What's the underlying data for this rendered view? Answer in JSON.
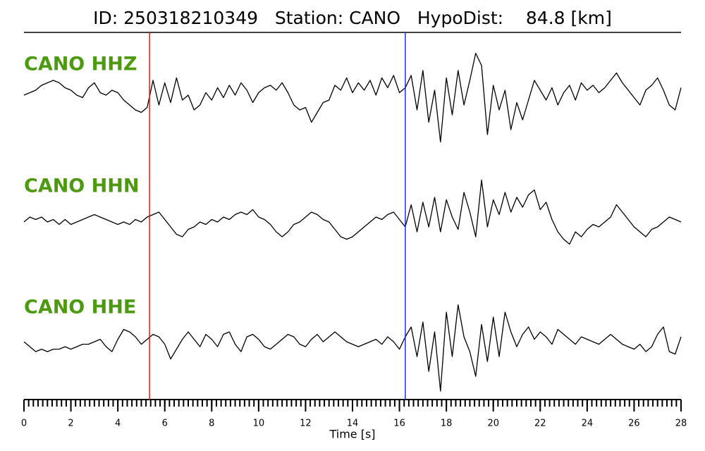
{
  "chart_data": {
    "type": "seismogram",
    "title": "ID: 250318210349   Station: CANO   HypoDist:    84.8 [km]",
    "xlabel": "Time [s]",
    "xlim": [
      0,
      28
    ],
    "xticks": [
      0,
      2,
      4,
      6,
      8,
      10,
      12,
      14,
      16,
      18,
      20,
      22,
      24,
      26,
      28
    ],
    "minor_tick_step": 0.2,
    "vlines": [
      {
        "value": 5.35,
        "color": "#e41a1c"
      },
      {
        "value": 16.25,
        "color": "#1f2fe0"
      }
    ],
    "x": [
      0,
      0.25,
      0.5,
      0.75,
      1,
      1.25,
      1.5,
      1.75,
      2,
      2.25,
      2.5,
      2.75,
      3,
      3.25,
      3.5,
      3.75,
      4,
      4.25,
      4.5,
      4.75,
      5,
      5.25,
      5.5,
      5.75,
      6,
      6.25,
      6.5,
      6.75,
      7,
      7.25,
      7.5,
      7.75,
      8,
      8.25,
      8.5,
      8.75,
      9,
      9.25,
      9.5,
      9.75,
      10,
      10.25,
      10.5,
      10.75,
      11,
      11.25,
      11.5,
      11.75,
      12,
      12.25,
      12.5,
      12.75,
      13,
      13.25,
      13.5,
      13.75,
      14,
      14.25,
      14.5,
      14.75,
      15,
      15.25,
      15.5,
      15.75,
      16,
      16.25,
      16.5,
      16.75,
      17,
      17.25,
      17.5,
      17.75,
      18,
      18.25,
      18.5,
      18.75,
      19,
      19.25,
      19.5,
      19.75,
      20,
      20.25,
      20.5,
      20.75,
      21,
      21.25,
      21.5,
      21.75,
      22,
      22.25,
      22.5,
      22.75,
      23,
      23.25,
      23.5,
      23.75,
      24,
      24.25,
      24.5,
      24.75,
      25,
      25.25,
      25.5,
      25.75,
      26,
      26.25,
      26.5,
      26.75,
      27,
      27.25,
      27.5,
      27.75,
      28
    ],
    "series": [
      {
        "name": "CANO HHZ",
        "color": "#000000",
        "values": [
          0,
          0.05,
          0.1,
          0.2,
          0.25,
          0.3,
          0.25,
          0.15,
          0.1,
          0,
          -0.05,
          0.15,
          0.25,
          0.05,
          0,
          0.1,
          0.05,
          -0.1,
          -0.2,
          -0.3,
          -0.35,
          -0.25,
          0.3,
          -0.2,
          0.25,
          -0.15,
          0.35,
          -0.1,
          0,
          -0.3,
          -0.2,
          0.05,
          -0.1,
          0.15,
          -0.05,
          0.2,
          0,
          0.25,
          0.1,
          -0.15,
          0.05,
          0.15,
          0.2,
          0.1,
          0.25,
          0.05,
          -0.2,
          -0.3,
          -0.25,
          -0.55,
          -0.35,
          -0.15,
          -0.1,
          0.2,
          0.1,
          0.35,
          0.05,
          0.25,
          0.1,
          0.3,
          0,
          0.35,
          0.15,
          0.4,
          0.05,
          0.15,
          0.4,
          -0.3,
          0.5,
          -0.55,
          0.1,
          -0.95,
          0.35,
          -0.4,
          0.5,
          -0.2,
          0.3,
          0.85,
          0.6,
          -0.8,
          0.2,
          -0.3,
          0.1,
          -0.7,
          -0.15,
          -0.5,
          -0.1,
          0.3,
          0.1,
          -0.1,
          0.15,
          -0.2,
          0.05,
          0.2,
          -0.1,
          0.25,
          0.1,
          0.2,
          0.05,
          0.15,
          0.3,
          0.45,
          0.25,
          0.1,
          -0.05,
          -0.2,
          0.1,
          0.2,
          0.35,
          0.1,
          -0.2,
          -0.3,
          0.15
        ]
      },
      {
        "name": "CANO HHN",
        "color": "#000000",
        "values": [
          0,
          0.1,
          0.05,
          0.1,
          0,
          0.05,
          -0.05,
          0.05,
          -0.05,
          0,
          0.05,
          0.1,
          0.15,
          0.1,
          0.05,
          0,
          -0.05,
          0,
          -0.05,
          0.05,
          0,
          0.1,
          0.15,
          0.2,
          0.05,
          -0.1,
          -0.25,
          -0.3,
          -0.15,
          -0.1,
          0,
          -0.05,
          0.05,
          0,
          0.1,
          0.05,
          0.15,
          0.2,
          0.15,
          0.25,
          0.1,
          0.05,
          -0.05,
          -0.2,
          -0.3,
          -0.2,
          -0.05,
          0,
          0.1,
          0.2,
          0.15,
          0.05,
          0,
          -0.15,
          -0.3,
          -0.35,
          -0.3,
          -0.2,
          -0.1,
          0,
          0.1,
          0.05,
          0.15,
          0.2,
          0.05,
          -0.1,
          0.35,
          -0.2,
          0.4,
          -0.1,
          0.5,
          -0.2,
          0.45,
          0.1,
          -0.15,
          0.6,
          0.2,
          -0.3,
          0.85,
          -0.1,
          0.45,
          0.15,
          0.6,
          0.2,
          0.5,
          0.3,
          0.55,
          0.65,
          0.25,
          0.4,
          0.05,
          -0.2,
          -0.35,
          -0.45,
          -0.2,
          -0.3,
          -0.15,
          -0.05,
          -0.1,
          0,
          0.1,
          0.35,
          0.2,
          0.05,
          -0.1,
          -0.2,
          -0.3,
          -0.15,
          -0.1,
          0,
          0.1,
          0.05,
          0
        ]
      },
      {
        "name": "CANO HHE",
        "color": "#000000",
        "values": [
          0,
          -0.1,
          -0.2,
          -0.15,
          -0.2,
          -0.15,
          -0.15,
          -0.1,
          -0.15,
          -0.1,
          -0.05,
          -0.05,
          0,
          0.05,
          -0.1,
          -0.2,
          0.05,
          0.25,
          0.2,
          0.1,
          -0.05,
          0.05,
          0.15,
          0.1,
          -0.05,
          -0.35,
          -0.15,
          0.05,
          0.2,
          0.05,
          -0.1,
          0.15,
          0.05,
          -0.1,
          0.15,
          0.2,
          -0.05,
          -0.2,
          0.1,
          0.15,
          0.05,
          -0.1,
          -0.15,
          -0.05,
          0.05,
          0.15,
          0.1,
          -0.05,
          -0.1,
          0.05,
          0.15,
          0,
          0.1,
          0.2,
          0.1,
          0,
          -0.05,
          -0.1,
          -0.05,
          0,
          0.05,
          -0.05,
          0.1,
          0,
          -0.15,
          0.1,
          0.3,
          -0.3,
          0.4,
          -0.6,
          0.2,
          -1.0,
          0.6,
          -0.3,
          0.75,
          0.1,
          -0.2,
          -0.7,
          0.35,
          -0.4,
          0.5,
          -0.3,
          0.6,
          0.2,
          -0.1,
          0.15,
          0.3,
          0.05,
          0.2,
          0.1,
          -0.05,
          0.25,
          0.15,
          0.05,
          -0.05,
          0.1,
          0.05,
          0,
          -0.05,
          0.05,
          0.15,
          0.05,
          -0.05,
          -0.1,
          -0.15,
          -0.05,
          -0.2,
          -0.1,
          0.15,
          0.3,
          -0.2,
          -0.25,
          0.1
        ]
      }
    ]
  }
}
